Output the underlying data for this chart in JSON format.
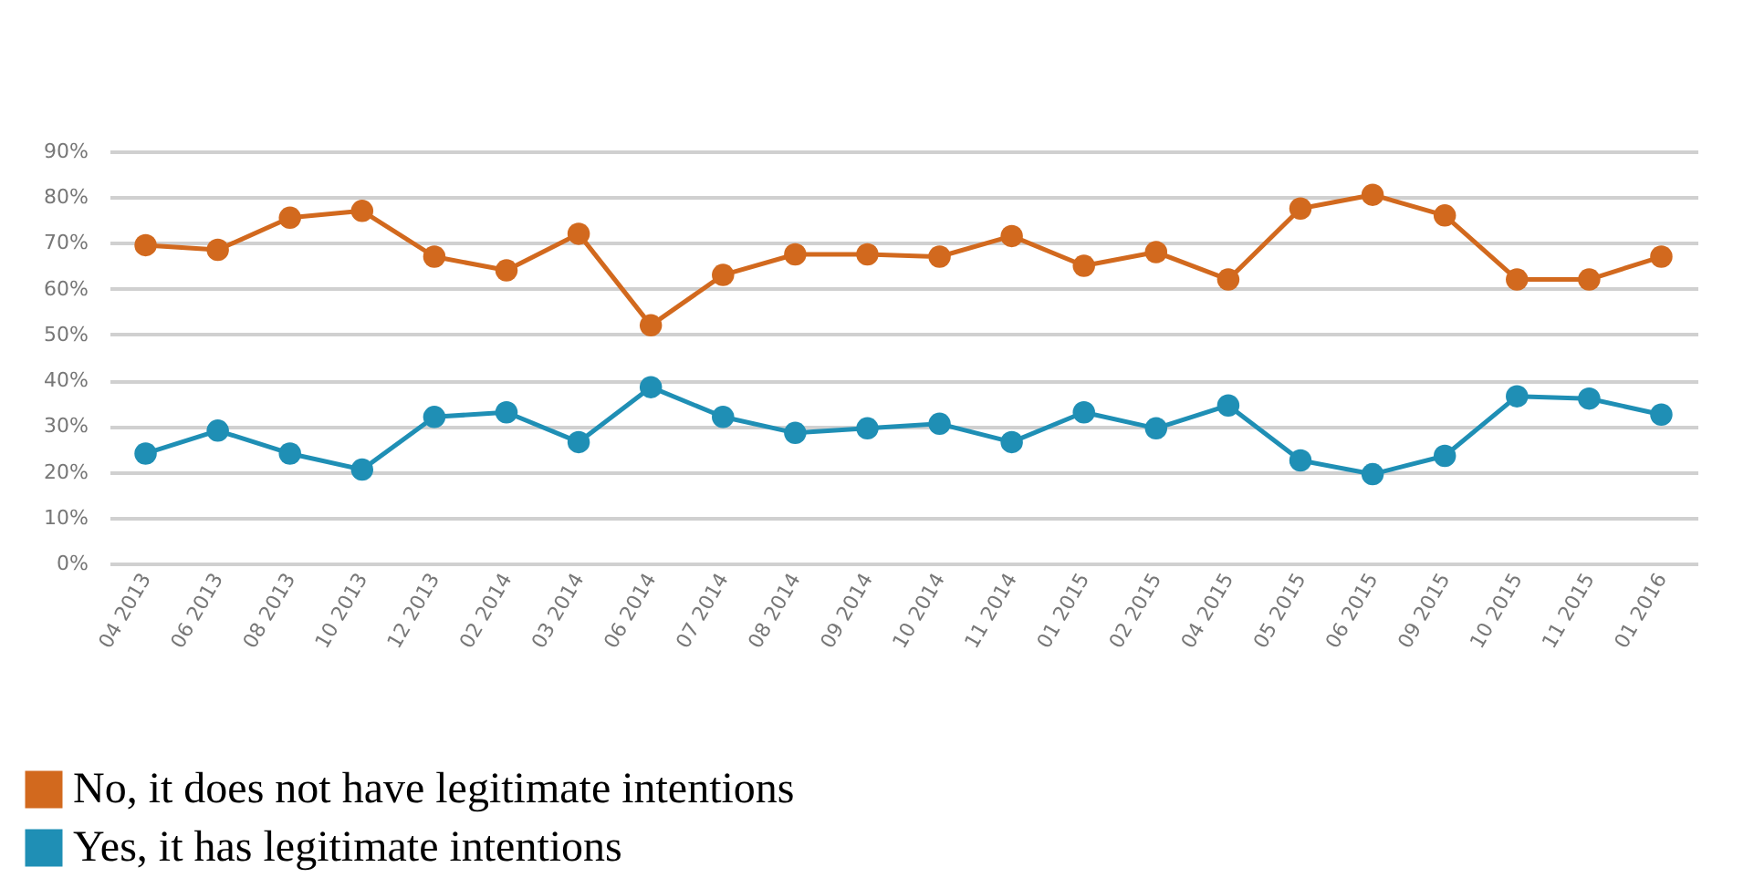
{
  "chart_data": {
    "type": "line",
    "categories": [
      "04 2013",
      "06 2013",
      "08 2013",
      "10 2013",
      "12 2013",
      "02 2014",
      "03 2014",
      "06 2014",
      "07 2014",
      "08 2014",
      "09 2014",
      "10 2014",
      "11 2014",
      "01 2015",
      "02 2015",
      "04 2015",
      "05 2015",
      "06 2015",
      "09 2015",
      "10 2015",
      "11 2015",
      "01 2016"
    ],
    "series": [
      {
        "name": "No, it does not have legitimate intentions",
        "color": "#d2691e",
        "values": [
          69.5,
          68.5,
          75.5,
          77,
          67,
          64,
          72,
          52,
          63,
          67.5,
          67.5,
          67,
          71.5,
          65,
          68,
          62,
          77.5,
          80.5,
          76,
          62,
          62,
          67
        ]
      },
      {
        "name": "Yes, it has legitimate intentions",
        "color": "#1f8fb5",
        "values": [
          24,
          29,
          24,
          20.5,
          32,
          33,
          26.5,
          38.5,
          32,
          28.5,
          29.5,
          30.5,
          26.5,
          33,
          29.5,
          34.5,
          22.5,
          19.5,
          23.5,
          36.5,
          36,
          32.5
        ]
      }
    ],
    "ylim": [
      0,
      90
    ],
    "yticks": [
      {
        "value": 0,
        "label": "0%"
      },
      {
        "value": 10,
        "label": "10%"
      },
      {
        "value": 20,
        "label": "20%"
      },
      {
        "value": 30,
        "label": "30%"
      },
      {
        "value": 40,
        "label": "40%"
      },
      {
        "value": 50,
        "label": "50%"
      },
      {
        "value": 60,
        "label": "60%"
      },
      {
        "value": 70,
        "label": "70%"
      },
      {
        "value": 80,
        "label": "80%"
      },
      {
        "value": 90,
        "label": "90%"
      }
    ],
    "grid": "y",
    "legend": "bottom left",
    "marker": "circle",
    "line_style": "solid"
  }
}
